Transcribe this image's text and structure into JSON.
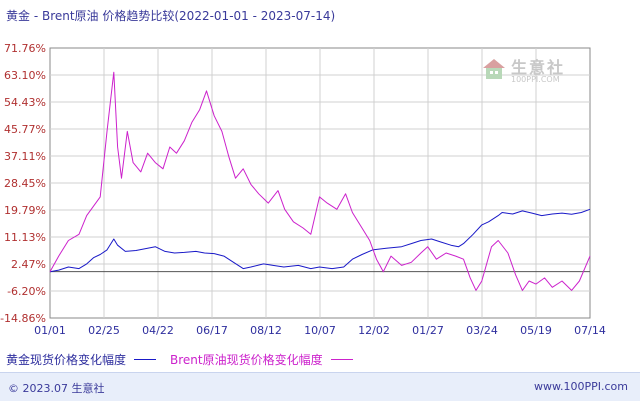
{
  "title": "黄金 - Brent原油 价格趋势比较(2022-01-01 - 2023-07-14)",
  "colors": {
    "gold": "#1a1ac8",
    "brent": "#cc22cc",
    "grid": "#d0d0d0",
    "axis": "#555555"
  },
  "watermark": {
    "name": "生意社",
    "site": "100PPI.COM"
  },
  "footer": {
    "left": "© 2023.07 生意社",
    "right": "www.100PPI.com"
  },
  "chart_data": {
    "type": "line",
    "title": "黄金 - Brent原油 价格趋势比较(2022-01-01 - 2023-07-14)",
    "x_ticks": [
      "01/01",
      "02/25",
      "04/22",
      "06/17",
      "08/12",
      "10/07",
      "12/02",
      "01/27",
      "03/24",
      "05/19",
      "07/14"
    ],
    "y_ticks": [
      "71.76%",
      "63.10%",
      "54.43%",
      "45.77%",
      "37.11%",
      "28.45%",
      "19.79%",
      "11.13%",
      "2.47%",
      "-6.20%",
      "-14.86%"
    ],
    "ylim": [
      -14.86,
      71.76
    ],
    "x_range": [
      "2022-01-01",
      "2023-07-14"
    ],
    "grid": true,
    "legend_position": "bottom",
    "series": [
      {
        "name": "黄金现货价格变化幅度",
        "color": "#1a1ac8",
        "points": [
          [
            "2022-01-01",
            0
          ],
          [
            "2022-01-10",
            0.5
          ],
          [
            "2022-01-20",
            1.5
          ],
          [
            "2022-01-31",
            1.0
          ],
          [
            "2022-02-08",
            2.5
          ],
          [
            "2022-02-15",
            4.5
          ],
          [
            "2022-02-22",
            5.5
          ],
          [
            "2022-03-01",
            7.0
          ],
          [
            "2022-03-08",
            10.5
          ],
          [
            "2022-03-12",
            8.5
          ],
          [
            "2022-03-20",
            6.5
          ],
          [
            "2022-03-31",
            6.8
          ],
          [
            "2022-04-12",
            7.5
          ],
          [
            "2022-04-20",
            8.0
          ],
          [
            "2022-04-30",
            6.5
          ],
          [
            "2022-05-10",
            6.0
          ],
          [
            "2022-05-20",
            6.2
          ],
          [
            "2022-06-01",
            6.5
          ],
          [
            "2022-06-10",
            6.0
          ],
          [
            "2022-06-20",
            5.8
          ],
          [
            "2022-06-30",
            5.0
          ],
          [
            "2022-07-10",
            3.0
          ],
          [
            "2022-07-20",
            1.0
          ],
          [
            "2022-07-28",
            1.5
          ],
          [
            "2022-08-10",
            2.5
          ],
          [
            "2022-08-20",
            2.0
          ],
          [
            "2022-08-31",
            1.5
          ],
          [
            "2022-09-15",
            2.0
          ],
          [
            "2022-09-28",
            1.0
          ],
          [
            "2022-10-07",
            1.5
          ],
          [
            "2022-10-20",
            1.0
          ],
          [
            "2022-11-01",
            1.5
          ],
          [
            "2022-11-10",
            4.0
          ],
          [
            "2022-11-20",
            5.5
          ],
          [
            "2022-12-01",
            7.0
          ],
          [
            "2022-12-15",
            7.5
          ],
          [
            "2022-12-31",
            8.0
          ],
          [
            "2023-01-10",
            9.0
          ],
          [
            "2023-01-20",
            10.0
          ],
          [
            "2023-01-31",
            10.5
          ],
          [
            "2023-02-10",
            9.5
          ],
          [
            "2023-02-20",
            8.5
          ],
          [
            "2023-02-28",
            8.0
          ],
          [
            "2023-03-05",
            9.0
          ],
          [
            "2023-03-15",
            12.0
          ],
          [
            "2023-03-24",
            15.0
          ],
          [
            "2023-03-31",
            16.0
          ],
          [
            "2023-04-10",
            18.0
          ],
          [
            "2023-04-14",
            19.0
          ],
          [
            "2023-04-25",
            18.5
          ],
          [
            "2023-05-05",
            19.5
          ],
          [
            "2023-05-15",
            18.8
          ],
          [
            "2023-05-25",
            18.0
          ],
          [
            "2023-06-05",
            18.5
          ],
          [
            "2023-06-15",
            18.8
          ],
          [
            "2023-06-25",
            18.4
          ],
          [
            "2023-07-05",
            19.0
          ],
          [
            "2023-07-14",
            20.0
          ]
        ]
      },
      {
        "name": "Brent原油现货价格变化幅度",
        "color": "#cc22cc",
        "points": [
          [
            "2022-01-01",
            0
          ],
          [
            "2022-01-10",
            5.0
          ],
          [
            "2022-01-20",
            10.0
          ],
          [
            "2022-01-31",
            12.0
          ],
          [
            "2022-02-08",
            18.0
          ],
          [
            "2022-02-15",
            21.0
          ],
          [
            "2022-02-22",
            24.0
          ],
          [
            "2022-03-01",
            45.0
          ],
          [
            "2022-03-08",
            64.0
          ],
          [
            "2022-03-12",
            40.0
          ],
          [
            "2022-03-16",
            30.0
          ],
          [
            "2022-03-22",
            45.0
          ],
          [
            "2022-03-28",
            35.0
          ],
          [
            "2022-04-05",
            32.0
          ],
          [
            "2022-04-12",
            38.0
          ],
          [
            "2022-04-20",
            35.0
          ],
          [
            "2022-04-28",
            33.0
          ],
          [
            "2022-05-05",
            40.0
          ],
          [
            "2022-05-12",
            38.0
          ],
          [
            "2022-05-20",
            42.0
          ],
          [
            "2022-05-28",
            48.0
          ],
          [
            "2022-06-05",
            52.0
          ],
          [
            "2022-06-12",
            58.0
          ],
          [
            "2022-06-20",
            50.0
          ],
          [
            "2022-06-28",
            45.0
          ],
          [
            "2022-07-05",
            37.0
          ],
          [
            "2022-07-12",
            30.0
          ],
          [
            "2022-07-20",
            33.0
          ],
          [
            "2022-07-28",
            28.0
          ],
          [
            "2022-08-05",
            25.0
          ],
          [
            "2022-08-15",
            22.0
          ],
          [
            "2022-08-25",
            26.0
          ],
          [
            "2022-09-01",
            20.0
          ],
          [
            "2022-09-10",
            16.0
          ],
          [
            "2022-09-20",
            14.0
          ],
          [
            "2022-09-28",
            12.0
          ],
          [
            "2022-10-07",
            24.0
          ],
          [
            "2022-10-15",
            22.0
          ],
          [
            "2022-10-25",
            20.0
          ],
          [
            "2022-11-03",
            25.0
          ],
          [
            "2022-11-10",
            19.0
          ],
          [
            "2022-11-20",
            14.0
          ],
          [
            "2022-11-28",
            10.0
          ],
          [
            "2022-12-05",
            4.0
          ],
          [
            "2022-12-12",
            0.0
          ],
          [
            "2022-12-20",
            5.0
          ],
          [
            "2022-12-31",
            2.0
          ],
          [
            "2023-01-10",
            3.0
          ],
          [
            "2023-01-20",
            6.0
          ],
          [
            "2023-01-27",
            8.0
          ],
          [
            "2023-02-05",
            4.0
          ],
          [
            "2023-02-15",
            6.0
          ],
          [
            "2023-02-25",
            5.0
          ],
          [
            "2023-03-05",
            4.0
          ],
          [
            "2023-03-12",
            -2.0
          ],
          [
            "2023-03-18",
            -6.0
          ],
          [
            "2023-03-24",
            -3.0
          ],
          [
            "2023-04-03",
            8.0
          ],
          [
            "2023-04-10",
            10.0
          ],
          [
            "2023-04-20",
            6.0
          ],
          [
            "2023-04-28",
            -1.0
          ],
          [
            "2023-05-05",
            -6.0
          ],
          [
            "2023-05-12",
            -3.0
          ],
          [
            "2023-05-19",
            -4.0
          ],
          [
            "2023-05-28",
            -2.0
          ],
          [
            "2023-06-05",
            -5.0
          ],
          [
            "2023-06-15",
            -3.0
          ],
          [
            "2023-06-25",
            -6.0
          ],
          [
            "2023-07-03",
            -3.0
          ],
          [
            "2023-07-14",
            5.0
          ]
        ]
      }
    ]
  }
}
